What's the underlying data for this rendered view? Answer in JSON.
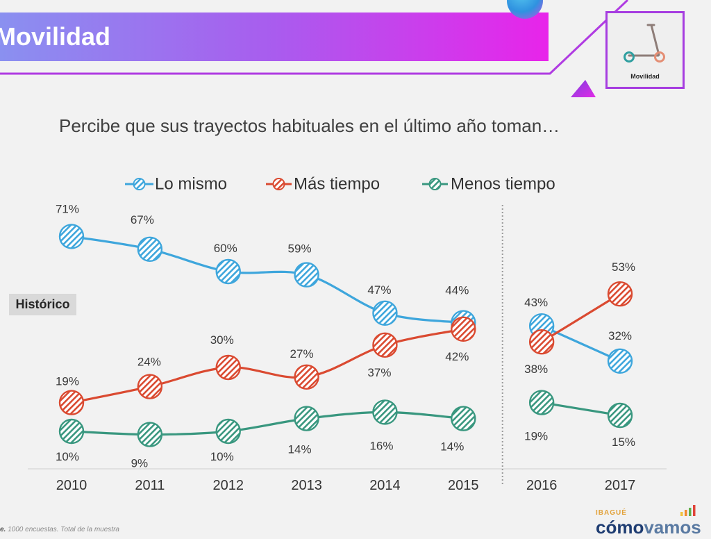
{
  "header": {
    "title": "Movilidad",
    "badge_label": "Movilidad",
    "badge_icon": "scooter-icon"
  },
  "theme": {
    "background": "#f2f2f2",
    "banner_start": "#8a90f0",
    "banner_mid": "#a95cee",
    "banner_end": "#e824ea",
    "accent": "#a63de0",
    "text": "#404040"
  },
  "chart_data": {
    "type": "line",
    "title": "Percibe que sus trayectos habituales en el último año toman…",
    "value_suffix": "%",
    "legend": "top",
    "panels": [
      {
        "label": "Histórico",
        "categories": [
          "2010",
          "2011",
          "2012",
          "2013",
          "2014",
          "2015"
        ]
      },
      {
        "categories": [
          "2016",
          "2017"
        ]
      }
    ],
    "series": [
      {
        "name": "Lo mismo",
        "color": "#3ea6dc",
        "values": [
          71,
          67,
          60,
          59,
          47,
          44,
          43,
          32
        ]
      },
      {
        "name": "Más tiempo",
        "color": "#da4a31",
        "values": [
          19,
          24,
          30,
          27,
          37,
          42,
          38,
          53
        ]
      },
      {
        "name": "Menos tiempo",
        "color": "#39977f",
        "values": [
          10,
          9,
          10,
          14,
          16,
          14,
          19,
          15
        ]
      }
    ]
  },
  "footer": {
    "note_prefix": "e.",
    "note": "1000 encuestas. Total de la muestra",
    "logo_city": "IBAGUÉ",
    "logo_word_1": "cómo",
    "logo_word_2": "vamos",
    "logo_icon": "signal-bars-icon"
  }
}
